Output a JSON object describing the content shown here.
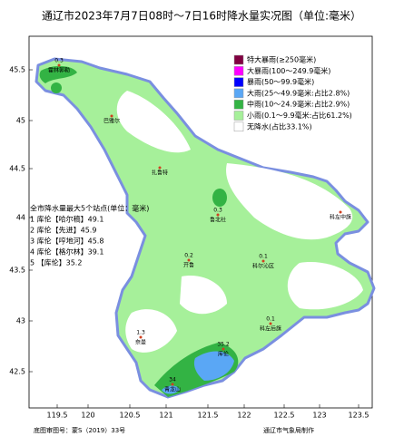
{
  "title": "通辽市2023年7月7日08时～7日16时降水量实况图（单位:毫米）",
  "legend": [
    "特大暴雨(≥250毫米)",
    "大暴雨(100～249.9毫米)",
    "暴雨(50～99.9毫米)",
    "大雨(25～49.9毫米:占比2.8%)",
    "中雨(10～24.9毫米:占比2.9%)",
    "小雨(0.1～9.9毫米:占比61.2%)",
    "无降水(占比33.1%)"
  ],
  "station_list": {
    "heading": "全市降水量最大5个站点(单位：毫米)",
    "items": [
      "1 库伦【哈尔稿】49.1",
      "2 库伦【先进】45.9",
      "3 库伦【哼地河】45.8",
      "4 库伦【格尔林】39.1",
      "5 【库伦】35.2"
    ]
  },
  "stations": [
    {
      "name": "霍林郭勒",
      "value": "0.3"
    },
    {
      "name": "巴雅尔"
    },
    {
      "name": "扎鲁特"
    },
    {
      "name": "鲁北社",
      "value": "0.3"
    },
    {
      "name": "科左中旗"
    },
    {
      "name": "开鲁",
      "value": "0.2"
    },
    {
      "name": "科尔沁区",
      "value": "0.1"
    },
    {
      "name": "科左后旗",
      "value": "0.1"
    },
    {
      "name": "奈曼",
      "value": "1.3"
    },
    {
      "name": "库伦",
      "value": "35.2"
    },
    {
      "name": "青龙山",
      "value": "34"
    }
  ],
  "lon_labels": [
    "119.5",
    "120",
    "120.5",
    "121",
    "121.5",
    "122",
    "122.5",
    "123",
    "123.5"
  ],
  "lat_labels": [
    "45.5",
    "45",
    "44.5",
    "44",
    "43.5",
    "43",
    "42.5"
  ],
  "footer": {
    "left": "底图审图号：蒙S（2019）33号",
    "right": "通辽市气象局制作"
  }
}
